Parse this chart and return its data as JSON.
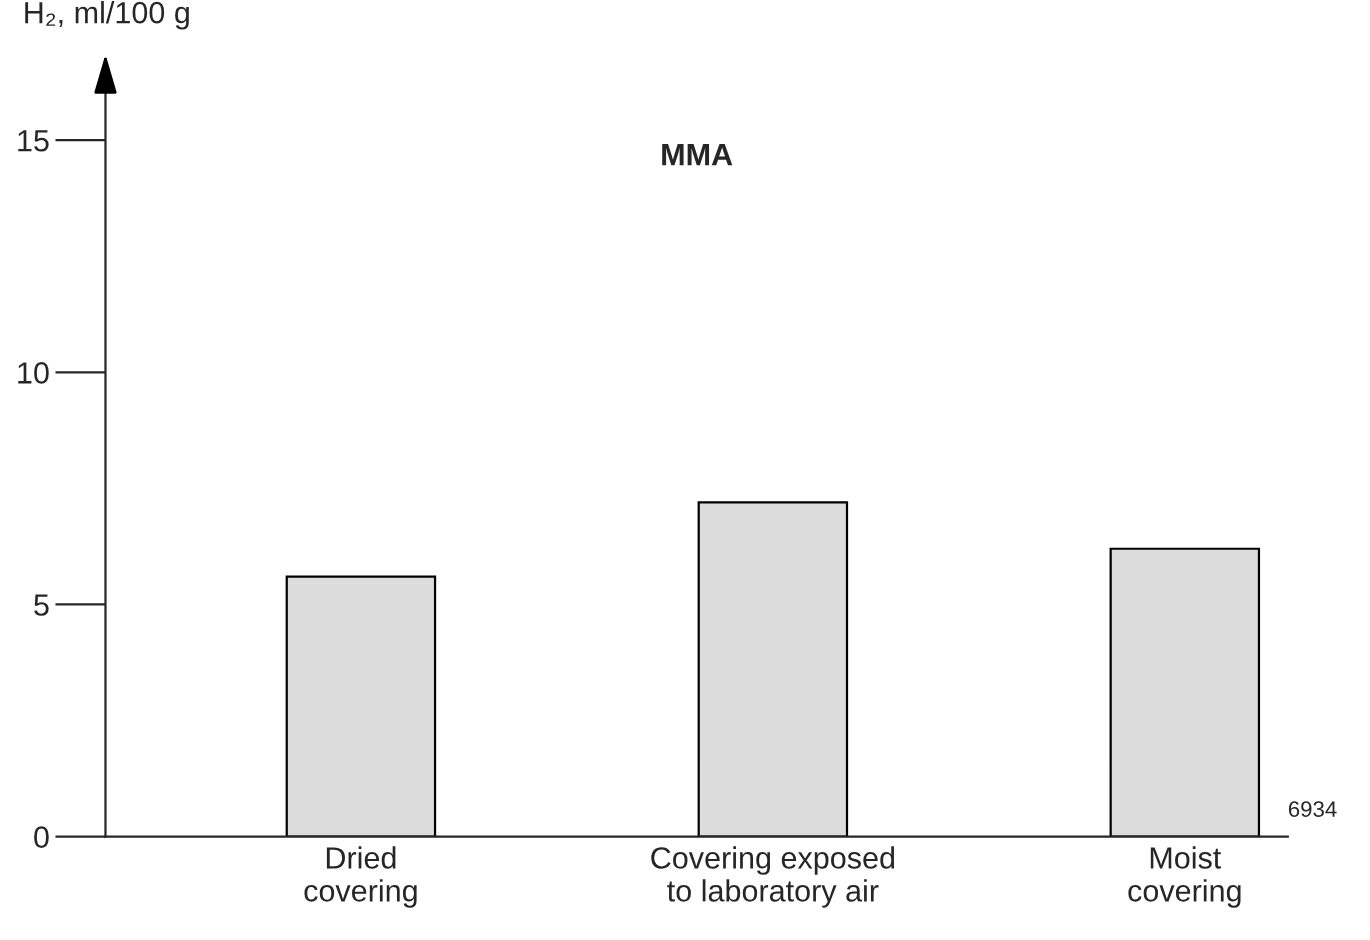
{
  "chart_data": {
    "type": "bar",
    "title": "MMA",
    "ylabel": "H₂, ml/100 g",
    "categories": [
      "Dried\ncovering",
      "Covering exposed\nto laboratory air",
      "Moist\ncovering"
    ],
    "values": [
      5.6,
      7.2,
      6.2
    ],
    "color": "#dcdcdc",
    "ylim": [
      0,
      16.4
    ],
    "yticks": [
      0,
      5,
      10,
      15
    ],
    "grid": false,
    "annotations": [
      "6934"
    ]
  }
}
